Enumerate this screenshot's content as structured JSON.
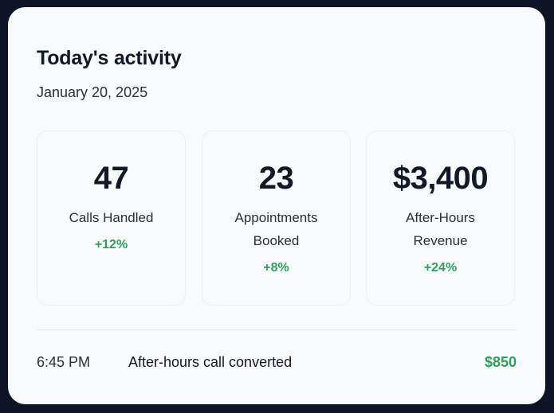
{
  "header": {
    "title": "Today's activity",
    "date": "January 20, 2025"
  },
  "stats": [
    {
      "value": "47",
      "label": "Calls Handled",
      "change": "+12%"
    },
    {
      "value": "23",
      "label": "Appointments Booked",
      "change": "+8%"
    },
    {
      "value": "$3,400",
      "label": "After-Hours Revenue",
      "change": "+24%"
    }
  ],
  "activity": [
    {
      "time": "6:45 PM",
      "description": "After-hours call converted",
      "amount": "$850"
    }
  ],
  "colors": {
    "background": "#0c1426",
    "panel": "#f8f9fb",
    "text_primary": "#111827",
    "positive": "#2e9e5b"
  }
}
